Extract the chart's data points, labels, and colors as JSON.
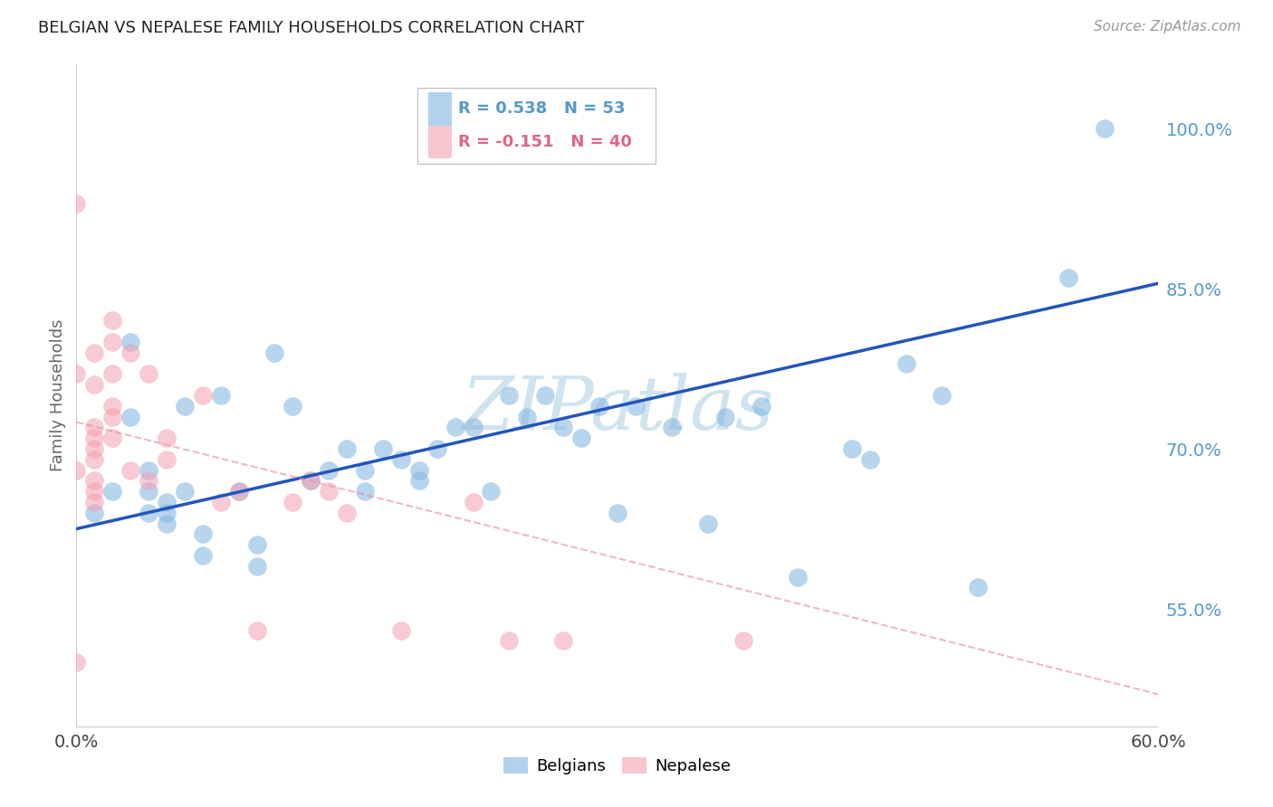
{
  "title": "BELGIAN VS NEPALESE FAMILY HOUSEHOLDS CORRELATION CHART",
  "source": "Source: ZipAtlas.com",
  "ylabel": "Family Households",
  "xlim": [
    0.0,
    0.6
  ],
  "ylim": [
    0.44,
    1.06
  ],
  "yticks": [
    0.55,
    0.7,
    0.85,
    1.0
  ],
  "ytick_labels": [
    "55.0%",
    "70.0%",
    "85.0%",
    "100.0%"
  ],
  "xticks": [
    0.0,
    0.1,
    0.2,
    0.3,
    0.4,
    0.5,
    0.6
  ],
  "xtick_labels": [
    "0.0%",
    "",
    "",
    "",
    "",
    "",
    "60.0%"
  ],
  "blue_color": "#7EB3E0",
  "pink_color": "#F4A0B0",
  "trend_blue_color": "#2255BB",
  "trend_pink_color": "#EE8899",
  "watermark": "ZIPatlas",
  "watermark_color": "#D0E4F0",
  "background_color": "#FFFFFF",
  "grid_color": "#CCCCCC",
  "axis_label_color": "#5599CC",
  "title_color": "#222222",
  "belgians_x": [
    0.01,
    0.02,
    0.03,
    0.03,
    0.04,
    0.04,
    0.04,
    0.05,
    0.05,
    0.05,
    0.06,
    0.06,
    0.07,
    0.07,
    0.08,
    0.09,
    0.1,
    0.1,
    0.11,
    0.12,
    0.13,
    0.14,
    0.15,
    0.16,
    0.16,
    0.17,
    0.18,
    0.19,
    0.19,
    0.2,
    0.21,
    0.22,
    0.23,
    0.24,
    0.25,
    0.26,
    0.27,
    0.28,
    0.29,
    0.3,
    0.31,
    0.33,
    0.35,
    0.36,
    0.38,
    0.4,
    0.43,
    0.44,
    0.46,
    0.48,
    0.5,
    0.55,
    0.57
  ],
  "belgians_y": [
    0.64,
    0.66,
    0.8,
    0.73,
    0.68,
    0.66,
    0.64,
    0.65,
    0.63,
    0.64,
    0.74,
    0.66,
    0.62,
    0.6,
    0.75,
    0.66,
    0.59,
    0.61,
    0.79,
    0.74,
    0.67,
    0.68,
    0.7,
    0.66,
    0.68,
    0.7,
    0.69,
    0.67,
    0.68,
    0.7,
    0.72,
    0.72,
    0.66,
    0.75,
    0.73,
    0.75,
    0.72,
    0.71,
    0.74,
    0.64,
    0.74,
    0.72,
    0.63,
    0.73,
    0.74,
    0.58,
    0.7,
    0.69,
    0.78,
    0.75,
    0.57,
    0.86,
    1.0
  ],
  "nepalese_x": [
    0.0,
    0.0,
    0.0,
    0.0,
    0.01,
    0.01,
    0.01,
    0.01,
    0.01,
    0.01,
    0.01,
    0.01,
    0.01,
    0.02,
    0.02,
    0.02,
    0.02,
    0.02,
    0.02,
    0.03,
    0.03,
    0.04,
    0.04,
    0.05,
    0.05,
    0.07,
    0.08,
    0.09,
    0.1,
    0.12,
    0.13,
    0.14,
    0.15,
    0.18,
    0.22,
    0.24,
    0.27,
    0.37
  ],
  "nepalese_y": [
    0.5,
    0.68,
    0.77,
    0.93,
    0.79,
    0.76,
    0.72,
    0.71,
    0.7,
    0.69,
    0.67,
    0.66,
    0.65,
    0.82,
    0.8,
    0.77,
    0.74,
    0.73,
    0.71,
    0.79,
    0.68,
    0.67,
    0.77,
    0.71,
    0.69,
    0.75,
    0.65,
    0.66,
    0.53,
    0.65,
    0.67,
    0.66,
    0.64,
    0.53,
    0.65,
    0.52,
    0.52,
    0.52
  ],
  "blue_trend_x": [
    0.0,
    0.6
  ],
  "blue_trend_y": [
    0.625,
    0.855
  ],
  "pink_trend_x": [
    0.0,
    0.6
  ],
  "pink_trend_y": [
    0.725,
    0.47
  ]
}
